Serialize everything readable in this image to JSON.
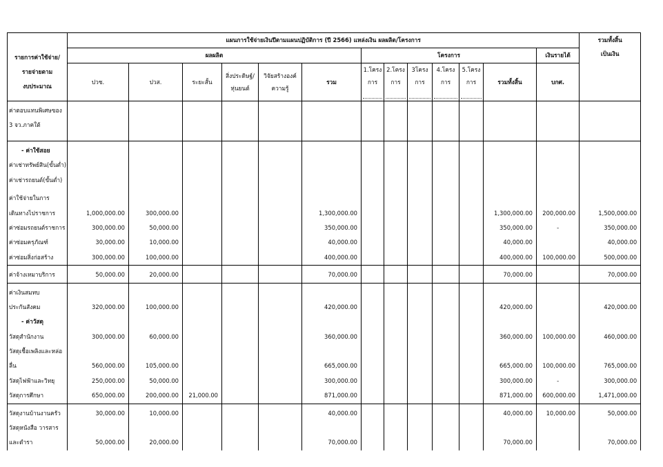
{
  "header": {
    "row_label": [
      "รายการค่าใช้จ่าย/",
      "รายจ่ายตาม",
      "งบประมาณ"
    ],
    "title": "แผนการใช้จ่ายเงินปีตามแผนปฏิบัติการ (ปี 2566) แหล่งเงิน ผลผลิต/โครงการ",
    "grand_total": [
      "รวมทั้งสิ้น",
      "เป็นเงิน"
    ],
    "output_group": "ผลผลิต",
    "project_group": "โครงการ",
    "income_group": "เงินรายได้",
    "income_sub": "บกศ.",
    "output_cols": [
      "ปวช.",
      "ปวส.",
      "ระยะสั้น",
      [
        "สิ่งประดิษฐ์/",
        "หุ่นยนต์"
      ],
      [
        "วิจัยสร้างองค์",
        "ความรู้"
      ],
      "รวม"
    ],
    "project_cols": [
      [
        "1.โครง",
        "การ"
      ],
      [
        "2.โครง",
        "การ"
      ],
      [
        "3โครง",
        "การ"
      ],
      [
        "4.โครง",
        "การ"
      ],
      [
        "5.โครง",
        "การ"
      ]
    ],
    "project_total": "รวมทั้งสิ้น"
  },
  "blocks": [
    {
      "lines": [
        {
          "label": "ค่าตอบแทนพิเศษของ"
        },
        {
          "label": " 3 จว.ภาคใต้"
        }
      ]
    },
    {
      "lines": [
        {
          "label": "- ค่าใช้สอย",
          "heading": true
        },
        {
          "label": "ค่าเช่าทรัพย์สิน(ขั้นต่ำ)"
        },
        {
          "label": "ค่าเช่ารถยนต์(ขั้นต่ำ)"
        },
        {
          "gap": true
        },
        {
          "label": "ค่าใช้จ่ายในการ"
        },
        {
          "label": "เดินทางไปราชการ",
          "v": {
            "pvch": "1,000,000.00",
            "pvs": "300,000.00",
            "output_sum": "1,300,000.00",
            "project_total": "1,300,000.00",
            "income": "200,000.00",
            "grand": "1,500,000.00"
          }
        },
        {
          "label": "ค่าซ่อมรถยนต์ราชการ",
          "v": {
            "pvch": "300,000.00",
            "pvs": "50,000.00",
            "output_sum": "350,000.00",
            "project_total": "350,000.00",
            "income": "-",
            "grand": "350,000.00"
          }
        },
        {
          "label": "ค่าซ่อมครุภัณฑ์",
          "v": {
            "pvch": "30,000.00",
            "pvs": "10,000.00",
            "output_sum": "40,000.00",
            "project_total": "40,000.00",
            "grand": "40,000.00"
          }
        },
        {
          "label": "ค่าซ่อมสิ่งก่อสร้าง",
          "v": {
            "pvch": "300,000.00",
            "pvs": "100,000.00",
            "output_sum": "400,000.00",
            "project_total": "400,000.00",
            "income": "100,000.00",
            "grand": "500,000.00"
          }
        }
      ]
    },
    {
      "lines": [
        {
          "label": "ค่าจ้างเหมาบริการ",
          "v": {
            "pvch": "50,000.00",
            "pvs": "20,000.00",
            "output_sum": "70,000.00",
            "project_total": "70,000.00",
            "grand": "70,000.00"
          }
        }
      ]
    },
    {
      "lines": [
        {
          "label": "ค่าเงินสมทบ"
        },
        {
          "label": "ประกันสังคม",
          "v": {
            "pvch": "320,000.00",
            "pvs": "100,000.00",
            "output_sum": "420,000.00",
            "project_total": "420,000.00",
            "grand": "420,000.00"
          }
        },
        {
          "label": "- ค่าวัสดุ",
          "heading": true
        },
        {
          "label": "วัสดุสำนักงาน",
          "v": {
            "pvch": "300,000.00",
            "pvs": "60,000.00",
            "output_sum": "360,000.00",
            "project_total": "360,000.00",
            "income": "100,000.00",
            "grand": "460,000.00"
          }
        },
        {
          "label": "วัสดุเชื้อเพลิงและหล่อ"
        },
        {
          "label": "ลื่น",
          "v": {
            "pvch": "560,000.00",
            "pvs": "105,000.00",
            "output_sum": "665,000.00",
            "project_total": "665,000.00",
            "income": "100,000.00",
            "grand": "765,000.00"
          }
        },
        {
          "label": "วัสดุไฟฟ้าและวิทยุ",
          "v": {
            "pvch": "250,000.00",
            "pvs": "50,000.00",
            "output_sum": "300,000.00",
            "project_total": "300,000.00",
            "income": "-",
            "grand": "300,000.00"
          }
        },
        {
          "label": "วัสดุการศึกษา",
          "v": {
            "pvch": "650,000.00",
            "pvs": "200,000.00",
            "short": "21,000.00",
            "output_sum": "871,000.00",
            "project_total": "871,000.00",
            "income": "600,000.00",
            "grand": "1,471,000.00"
          }
        }
      ]
    },
    {
      "lines": [
        {
          "label": "วัสดุงานบ้านงานครัว",
          "v": {
            "pvch": "30,000.00",
            "pvs": "10,000.00",
            "output_sum": "40,000.00",
            "project_total": "40,000.00",
            "income": "10,000.00",
            "grand": "50,000.00"
          }
        },
        {
          "label": "วัสดุหนังสือ วารสาร"
        },
        {
          "label": "และตำรา",
          "v": {
            "pvch": "50,000.00",
            "pvs": "20,000.00",
            "output_sum": "70,000.00",
            "project_total": "70,000.00",
            "grand": "70,000.00"
          }
        }
      ]
    }
  ]
}
